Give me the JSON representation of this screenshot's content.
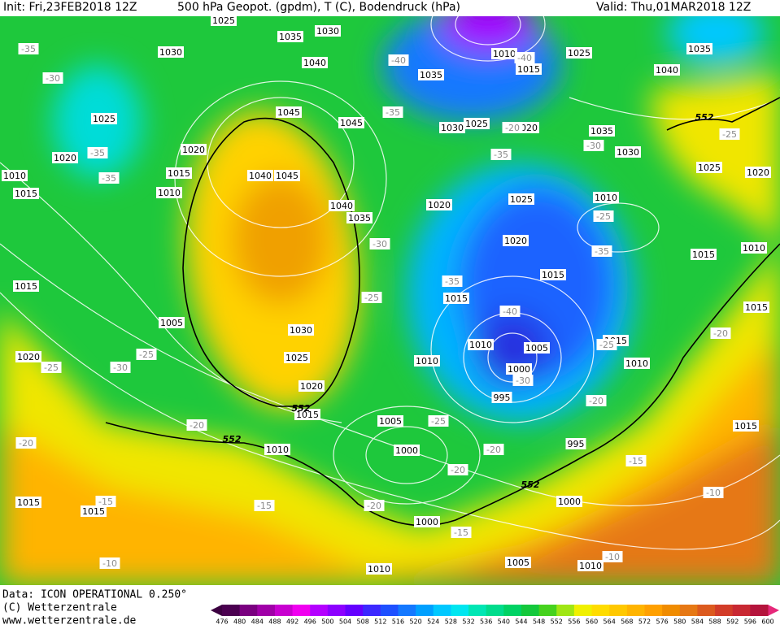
{
  "header": {
    "init": "Init: Fri,23FEB2018 12Z",
    "title": "500 hPa Geopot. (gpdm), T (C), Bodendruck (hPa)",
    "valid": "Valid: Thu,01MAR2018 12Z"
  },
  "footer": {
    "data": "Data: ICON OPERATIONAL 0.250°",
    "copyright": "(C) Wetterzentrale",
    "website": "www.wetterzentrale.de"
  },
  "map": {
    "pressure_labels": [
      "1025",
      "1035",
      "1030",
      "1030",
      "1040",
      "1035",
      "1010",
      "1015",
      "1025",
      "1035",
      "1040",
      "1025",
      "1045",
      "1045",
      "1030",
      "1025",
      "1020",
      "1035",
      "1030",
      "1020",
      "1020",
      "1015",
      "1010",
      "1010",
      "1015",
      "1040",
      "1045",
      "1025",
      "1020",
      "1020",
      "1025",
      "1010",
      "1040",
      "1035",
      "1020",
      "1010",
      "1015",
      "1015",
      "1015",
      "1015",
      "1005",
      "1030",
      "1015",
      "1025",
      "1010",
      "1005",
      "1015",
      "1010",
      "1010",
      "1020",
      "1000",
      "1020",
      "1015",
      "995",
      "1005",
      "1010",
      "1000",
      "995",
      "1015",
      "1000",
      "1015",
      "1015",
      "1000",
      "1005",
      "1010",
      "1010"
    ],
    "temperature_labels": [
      "-35",
      "-30",
      "-35",
      "-35",
      "-40",
      "-35",
      "-40",
      "-20",
      "-30",
      "-25",
      "-35",
      "-25",
      "-30",
      "-35",
      "-35",
      "-25",
      "-40",
      "-25",
      "-30",
      "-25",
      "-25",
      "-20",
      "-30",
      "-20",
      "-20",
      "-25",
      "-20",
      "-20",
      "-20",
      "-15",
      "-15",
      "-15",
      "-20",
      "-15",
      "-10",
      "-10",
      "-10"
    ],
    "contour_labels": [
      "552",
      "552",
      "552",
      "552"
    ]
  },
  "legend": {
    "labels": [
      476,
      480,
      484,
      488,
      492,
      496,
      500,
      504,
      508,
      512,
      516,
      520,
      524,
      528,
      532,
      536,
      540,
      544,
      548,
      552,
      556,
      560,
      564,
      568,
      572,
      576,
      580,
      584,
      588,
      592,
      596,
      600
    ],
    "colors": [
      "#4b0050",
      "#7a0080",
      "#a000a8",
      "#c800d0",
      "#f000f0",
      "#b400ff",
      "#8c00ff",
      "#6400ff",
      "#3c28ff",
      "#1e50ff",
      "#1478ff",
      "#00a0ff",
      "#00c8ff",
      "#00e6f0",
      "#00e6b4",
      "#00dc8c",
      "#00d264",
      "#14c83c",
      "#46d21e",
      "#a0e614",
      "#f0f000",
      "#ffdc00",
      "#ffc800",
      "#ffb400",
      "#ffa000",
      "#f08c00",
      "#e67814",
      "#dc5a1e",
      "#d23c28",
      "#c82832",
      "#b4143c"
    ],
    "under_color": "#3c0040",
    "over_color": "#e6287a"
  }
}
